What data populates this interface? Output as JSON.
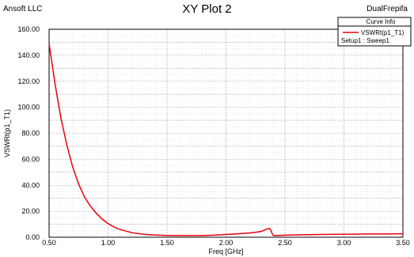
{
  "header": {
    "company": "Ansoft LLC",
    "design": "DualFrepifa"
  },
  "legend": {
    "title": "Curve Info",
    "entry": "VSWRt(p1_T1)",
    "setup": "Setup1 : Sweep1"
  },
  "chart_data": {
    "type": "line",
    "title": "XY Plot 2",
    "xlabel": "Freq [GHz]",
    "ylabel": "VSWRt(p1_T1)",
    "xlim": [
      0.5,
      3.5
    ],
    "ylim": [
      0,
      160
    ],
    "x_ticks": [
      "0.50",
      "1.00",
      "1.50",
      "2.00",
      "2.50",
      "3.00",
      "3.50"
    ],
    "y_ticks": [
      "0.00",
      "20.00",
      "40.00",
      "60.00",
      "80.00",
      "100.00",
      "120.00",
      "140.00",
      "160.00"
    ],
    "grid": true,
    "legend_position": "top-right",
    "series": [
      {
        "name": "VSWRt(p1_T1)",
        "color": "#e8000b",
        "x": [
          0.5,
          0.55,
          0.6,
          0.65,
          0.7,
          0.75,
          0.8,
          0.85,
          0.9,
          0.95,
          1.0,
          1.05,
          1.1,
          1.2,
          1.3,
          1.4,
          1.5,
          1.6,
          1.7,
          1.8,
          1.9,
          2.0,
          2.1,
          2.2,
          2.25,
          2.3,
          2.33,
          2.35,
          2.37,
          2.38,
          2.39,
          2.4,
          2.42,
          2.45,
          2.5,
          2.6,
          2.7,
          2.8,
          2.9,
          3.0,
          3.1,
          3.2,
          3.3,
          3.4,
          3.5
        ],
        "y": [
          149,
          118,
          92,
          71,
          54,
          41,
          31,
          24,
          18.5,
          14,
          10.5,
          8,
          6,
          3.5,
          2.3,
          1.7,
          1.4,
          1.3,
          1.2,
          1.3,
          1.6,
          2.1,
          2.7,
          3.3,
          3.8,
          4.5,
          5.6,
          6.5,
          6.8,
          5.5,
          3.0,
          1.4,
          1.3,
          1.4,
          1.6,
          1.8,
          2.0,
          2.1,
          2.2,
          2.3,
          2.4,
          2.5,
          2.5,
          2.6,
          2.7
        ]
      }
    ]
  }
}
